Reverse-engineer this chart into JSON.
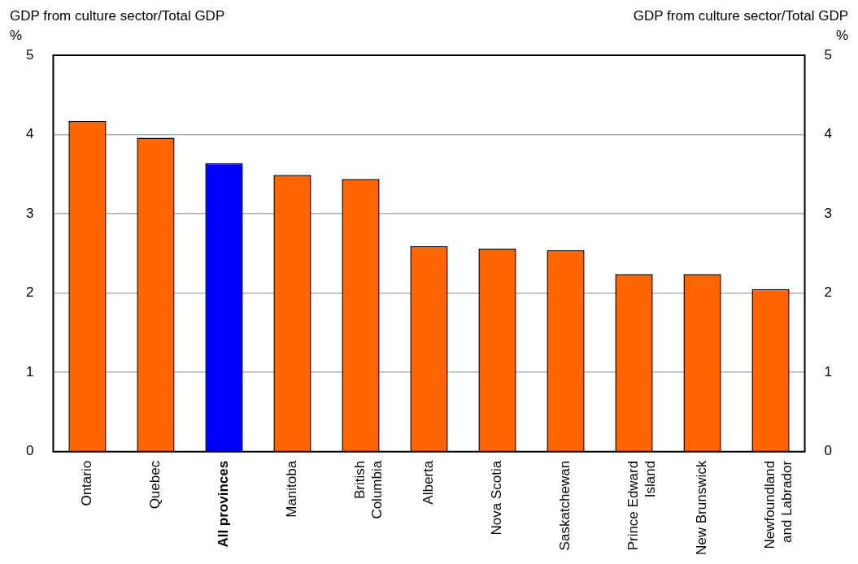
{
  "chart_data": {
    "type": "bar",
    "ylabel": "GDP from culture sector/Total GDP\n%",
    "y2label": "GDP from culture sector/Total GDP\n%",
    "categories": [
      "Ontario",
      "Quebec",
      "All provinces",
      "Manitoba",
      "British\nColumbia",
      "Alberta",
      "Nova Scotia",
      "Saskatchewan",
      "Prince Edward\nIsland",
      "New Brunswick",
      "Newfoundland\nand Labrador"
    ],
    "values": [
      4.17,
      3.96,
      3.64,
      3.49,
      3.44,
      2.59,
      2.56,
      2.54,
      2.24,
      2.24,
      2.05
    ],
    "colors": [
      "#ff6600",
      "#ff6600",
      "#0000ff",
      "#ff6600",
      "#ff6600",
      "#ff6600",
      "#ff6600",
      "#ff6600",
      "#ff6600",
      "#ff6600",
      "#ff6600"
    ],
    "ylim": [
      0,
      5
    ],
    "yticks": [
      0,
      1,
      2,
      3,
      4,
      5
    ],
    "y2lim": [
      0,
      5
    ],
    "y2ticks": [
      0,
      1,
      2,
      3,
      4,
      5
    ],
    "grid": "y",
    "legend": false
  }
}
